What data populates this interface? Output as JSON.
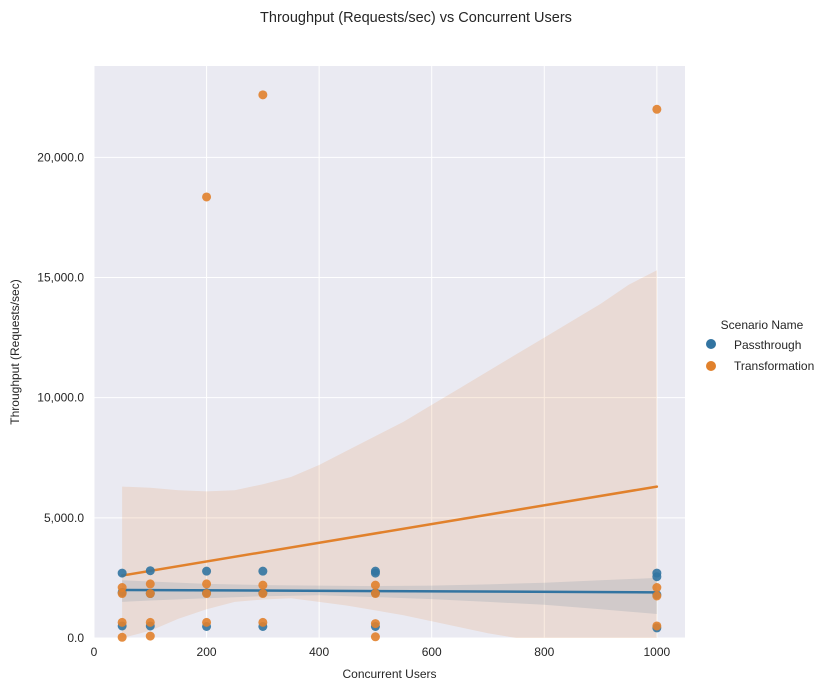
{
  "chart_data": {
    "type": "scatter",
    "title": "Throughput (Requests/sec) vs Concurrent Users",
    "xlabel": "Concurrent Users",
    "ylabel": "Throughput (Requests/sec)",
    "xlim": [
      0,
      1050
    ],
    "ylim": [
      0,
      23800
    ],
    "xticks": [
      0,
      200,
      400,
      600,
      800,
      1000
    ],
    "xtick_labels": [
      "0",
      "200",
      "400",
      "600",
      "800",
      "1000"
    ],
    "yticks": [
      0,
      5000,
      10000,
      15000,
      20000
    ],
    "ytick_labels": [
      "0.0",
      "5,000.0",
      "10,000.0",
      "15,000.0",
      "20,000.0"
    ],
    "grid": true,
    "legend": {
      "title": "Scenario Name",
      "placement": "right"
    },
    "series": [
      {
        "name": "Passthrough",
        "color": "#3274a1",
        "points": [
          [
            50,
            2700
          ],
          [
            50,
            500
          ],
          [
            50,
            1900
          ],
          [
            100,
            2800
          ],
          [
            100,
            500
          ],
          [
            100,
            1850
          ],
          [
            200,
            2780
          ],
          [
            200,
            480
          ],
          [
            200,
            1880
          ],
          [
            300,
            2780
          ],
          [
            300,
            480
          ],
          [
            300,
            1880
          ],
          [
            500,
            2780
          ],
          [
            500,
            2700
          ],
          [
            500,
            480
          ],
          [
            500,
            1880
          ],
          [
            1000,
            2700
          ],
          [
            1000,
            2550
          ],
          [
            1000,
            420
          ],
          [
            1000,
            1800
          ]
        ],
        "regression": {
          "x": [
            50,
            1000
          ],
          "y": [
            2000,
            1900
          ]
        },
        "ci_band": {
          "x": [
            50,
            100,
            200,
            300,
            400,
            500,
            600,
            700,
            800,
            900,
            1000
          ],
          "upper": [
            2400,
            2350,
            2250,
            2200,
            2180,
            2160,
            2180,
            2230,
            2300,
            2400,
            2500
          ],
          "lower": [
            1500,
            1560,
            1650,
            1740,
            1780,
            1700,
            1620,
            1500,
            1380,
            1200,
            1000
          ]
        }
      },
      {
        "name": "Transformation",
        "color": "#e1812c",
        "points": [
          [
            50,
            2100
          ],
          [
            50,
            1850
          ],
          [
            50,
            650
          ],
          [
            50,
            30
          ],
          [
            100,
            2250
          ],
          [
            100,
            1850
          ],
          [
            100,
            650
          ],
          [
            100,
            80
          ],
          [
            200,
            2250
          ],
          [
            200,
            1850
          ],
          [
            200,
            650
          ],
          [
            200,
            18350
          ],
          [
            300,
            2200
          ],
          [
            300,
            1850
          ],
          [
            300,
            650
          ],
          [
            300,
            22600
          ],
          [
            500,
            2200
          ],
          [
            500,
            1850
          ],
          [
            500,
            600
          ],
          [
            500,
            50
          ],
          [
            1000,
            2100
          ],
          [
            1000,
            1750
          ],
          [
            1000,
            500
          ],
          [
            1000,
            22000
          ]
        ],
        "regression": {
          "x": [
            50,
            1000
          ],
          "y": [
            2600,
            6300
          ]
        },
        "ci_band": {
          "x": [
            50,
            100,
            150,
            200,
            250,
            300,
            350,
            400,
            450,
            500,
            550,
            600,
            650,
            700,
            750,
            800,
            850,
            900,
            950,
            1000
          ],
          "upper": [
            6300,
            6250,
            6150,
            6100,
            6150,
            6400,
            6700,
            7200,
            7800,
            8400,
            9000,
            9700,
            10400,
            11100,
            11800,
            12500,
            13200,
            13900,
            14700,
            15300
          ],
          "lower": [
            0,
            300,
            800,
            1200,
            1500,
            1600,
            1650,
            1500,
            1350,
            1150,
            950,
            700,
            450,
            200,
            0,
            0,
            0,
            0,
            0,
            0
          ]
        }
      }
    ]
  }
}
